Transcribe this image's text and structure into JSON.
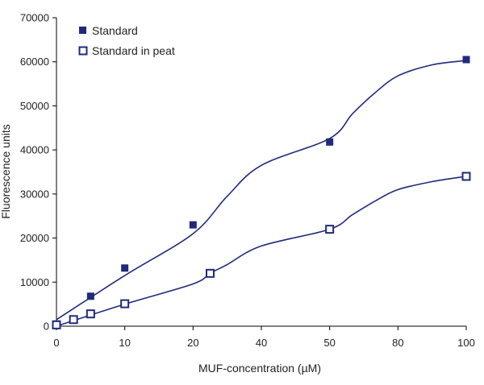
{
  "chart_data": {
    "type": "scatter",
    "title": "",
    "xlabel": "MUF-concentration (µM)",
    "ylabel": "Fluorescence units",
    "x_ticks": [
      "0",
      "10",
      "20",
      "40",
      "50",
      "80",
      "100"
    ],
    "y_ticks": [
      "0",
      "10000",
      "20000",
      "30000",
      "40000",
      "50000",
      "60000",
      "70000"
    ],
    "ylim": [
      0,
      70000
    ],
    "legend_position": "top-left",
    "grid": false,
    "series": [
      {
        "name": "Standard",
        "marker": "filled-square",
        "color": "#1f2a7a",
        "x": [
          0,
          5,
          10,
          20,
          50,
          100
        ],
        "y": [
          500,
          6800,
          13200,
          23000,
          41800,
          60500
        ],
        "fit": {
          "x": [
            0,
            10,
            20,
            30,
            40,
            50,
            60,
            70,
            80,
            90,
            100
          ],
          "y": [
            1500,
            11500,
            21000,
            29500,
            36500,
            42600,
            48200,
            53000,
            56800,
            59300,
            60300
          ]
        }
      },
      {
        "name": "Standard in peat",
        "marker": "open-square",
        "color": "#1f2a7a",
        "x": [
          0,
          2.5,
          5,
          10,
          25,
          50,
          100
        ],
        "y": [
          300,
          1500,
          2800,
          5100,
          12000,
          22000,
          34000
        ],
        "fit": {
          "x": [
            0,
            10,
            20,
            25,
            30,
            40,
            50,
            60,
            70,
            80,
            90,
            100
          ],
          "y": [
            0,
            5000,
            9600,
            12000,
            14000,
            18200,
            22000,
            25300,
            28400,
            31000,
            32800,
            34000
          ]
        }
      }
    ]
  }
}
